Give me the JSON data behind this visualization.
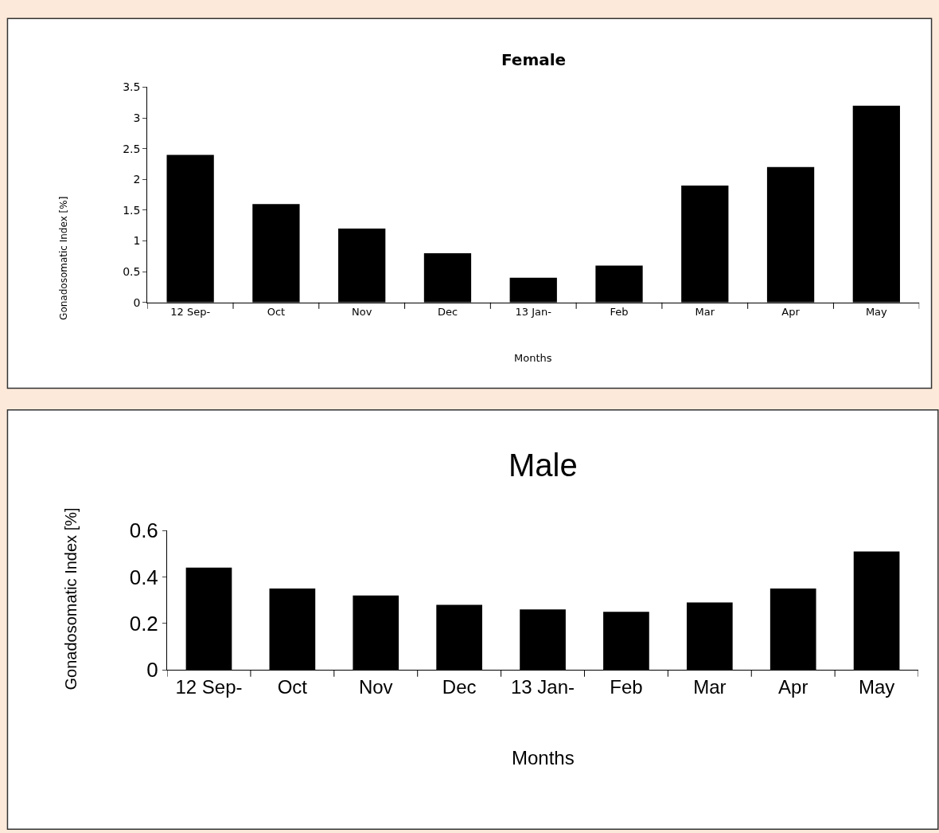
{
  "chart_data": [
    {
      "type": "bar",
      "title": "Female",
      "xlabel": "Months",
      "ylabel": "Gonadosomatic Index [%]",
      "categories": [
        "12 Sep-",
        "Oct",
        "Nov",
        "Dec",
        "13 Jan-",
        "Feb",
        "Mar",
        "Apr",
        "May"
      ],
      "values": [
        2.4,
        1.6,
        1.2,
        0.8,
        0.4,
        0.6,
        1.9,
        2.2,
        3.2
      ],
      "color": "#000000",
      "ylim": [
        0,
        3.5
      ],
      "yticks": [
        0,
        0.5,
        1,
        1.5,
        2,
        2.5,
        3,
        3.5
      ]
    },
    {
      "type": "bar",
      "title": "Male",
      "xlabel": "Months",
      "ylabel": "Gonadosomatic Index [%]",
      "categories": [
        "12 Sep-",
        "Oct",
        "Nov",
        "Dec",
        "13 Jan-",
        "Feb",
        "Mar",
        "Apr",
        "May"
      ],
      "values": [
        0.44,
        0.35,
        0.32,
        0.28,
        0.26,
        0.25,
        0.29,
        0.35,
        0.51
      ],
      "color": "#000000",
      "ylim": [
        0,
        0.6
      ],
      "yticks": [
        0,
        0.2,
        0.4,
        0.6
      ]
    }
  ]
}
